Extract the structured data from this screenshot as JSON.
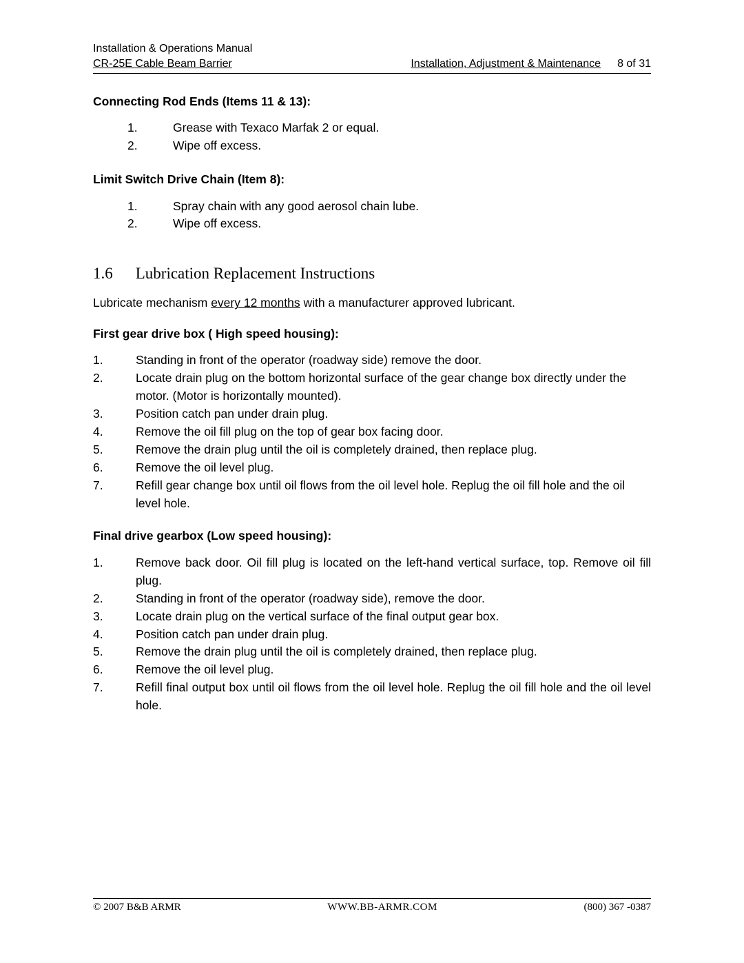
{
  "header": {
    "line1": "Installation & Operations Manual",
    "line2_left": "CR-25E Cable Beam Barrier",
    "line2_mid": "Installation, Adjustment & Maintenance",
    "line2_right": "8 of 31"
  },
  "sectionA": {
    "title": "Connecting Rod Ends (Items 11 & 13):",
    "items": [
      {
        "n": "1.",
        "t": "Grease with Texaco Marfak 2 or equal."
      },
      {
        "n": "2.",
        "t": "Wipe off excess."
      }
    ]
  },
  "sectionB": {
    "title": "Limit Switch Drive Chain (Item 8):",
    "items": [
      {
        "n": "1.",
        "t": "Spray chain with any good aerosol chain lube."
      },
      {
        "n": "2.",
        "t": "Wipe off excess."
      }
    ]
  },
  "secMain": {
    "num": "1.6",
    "title": "Lubrication Replacement Instructions",
    "intro_pre": "Lubricate mechanism ",
    "intro_uline": "every 12 months",
    "intro_post": " with a manufacturer approved lubricant."
  },
  "sectionC": {
    "title": "First gear drive box ( High speed housing):",
    "items": [
      {
        "n": "1.",
        "t": "Standing in front of the operator (roadway side) remove the door."
      },
      {
        "n": "2.",
        "t": "Locate drain plug on the bottom horizontal surface of the gear change box directly under the motor.  (Motor is horizontally mounted)."
      },
      {
        "n": "3.",
        "t": "Position catch pan under drain plug."
      },
      {
        "n": "4.",
        "t": "Remove the oil fill plug on the top of gear box facing door."
      },
      {
        "n": "5.",
        "t": "Remove the drain plug until the oil is completely drained, then replace plug."
      },
      {
        "n": "6.",
        "t": "Remove the oil level plug."
      },
      {
        "n": "7.",
        "t": "Refill gear change box until oil flows from the oil level hole.  Replug the oil fill hole and the oil level hole."
      }
    ]
  },
  "sectionD": {
    "title": "Final drive gearbox (Low speed housing):",
    "items": [
      {
        "n": "1.",
        "t": "Remove back door.  Oil fill plug is located on the left-hand vertical surface, top.  Remove oil fill plug."
      },
      {
        "n": "2.",
        "t": "Standing in front of the operator (roadway side), remove the door."
      },
      {
        "n": "3.",
        "t": "Locate drain plug on the vertical surface of the final output gear box."
      },
      {
        "n": "4.",
        "t": "Position catch pan under drain plug."
      },
      {
        "n": "5.",
        "t": "Remove the drain plug until the oil is completely drained, then replace plug."
      },
      {
        "n": "6.",
        "t": "Remove the oil level plug."
      },
      {
        "n": "7.",
        "t": "Refill final output box until oil flows from the oil level hole.  Replug the oil fill hole and the oil level hole."
      }
    ]
  },
  "footer": {
    "left": "© 2007 B&B ARMR",
    "mid": "WWW.BB-ARMR.COM",
    "right": "(800) 367 -0387"
  }
}
